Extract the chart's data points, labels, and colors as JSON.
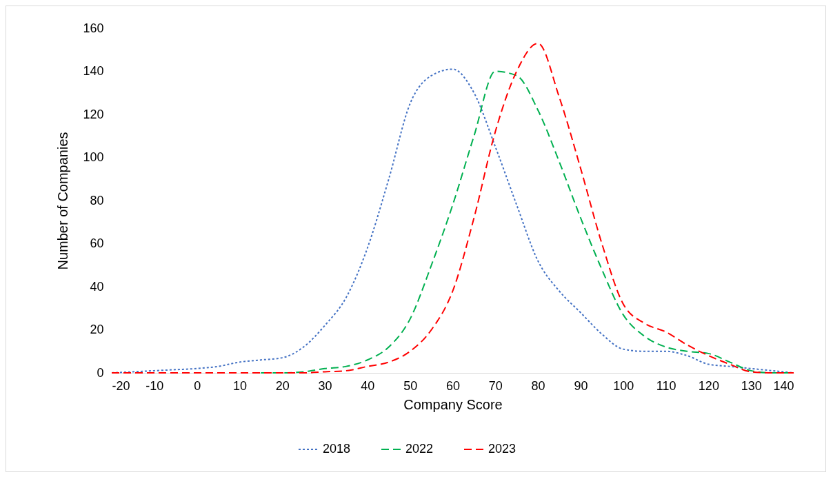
{
  "chart_data": {
    "type": "line",
    "xlabel": "Company Score",
    "ylabel": "Number of Companies",
    "xlim": [
      -20,
      140
    ],
    "xticks": [
      -20,
      -10,
      0,
      10,
      20,
      30,
      40,
      50,
      60,
      70,
      80,
      90,
      100,
      110,
      120,
      130,
      140
    ],
    "ylim": [
      0,
      160
    ],
    "yticks": [
      0,
      20,
      40,
      60,
      80,
      100,
      120,
      140,
      160
    ],
    "grid": false,
    "legend": "bottom",
    "marker": "none",
    "x": [
      -20,
      -15,
      -10,
      -5,
      0,
      5,
      10,
      15,
      20,
      25,
      30,
      35,
      40,
      45,
      50,
      55,
      60,
      65,
      70,
      75,
      80,
      85,
      90,
      95,
      100,
      105,
      110,
      115,
      120,
      125,
      130,
      135,
      140
    ],
    "series": [
      {
        "name": "2018",
        "color": "#4472c4",
        "line_style": "dotted",
        "values": [
          0,
          0.5,
          1,
          1.5,
          2,
          3,
          5,
          6,
          7,
          12,
          22,
          35,
          58,
          90,
          125,
          138,
          141,
          130,
          105,
          78,
          52,
          38,
          28,
          18,
          11,
          10,
          10,
          8,
          4,
          3,
          2,
          1,
          0
        ]
      },
      {
        "name": "2022",
        "color": "#00b050",
        "line_style": "dashed",
        "values": [
          null,
          null,
          null,
          null,
          null,
          null,
          null,
          0,
          0,
          0.5,
          2,
          3,
          6,
          12,
          25,
          50,
          78,
          110,
          140,
          138,
          122,
          98,
          72,
          48,
          27,
          17,
          12,
          10,
          9,
          5,
          1,
          0,
          0
        ]
      },
      {
        "name": "2023",
        "color": "#ff0000",
        "line_style": "dashed",
        "values": [
          0,
          0,
          0,
          0,
          0,
          0,
          0,
          0,
          0,
          0,
          0.5,
          1,
          3,
          5,
          10,
          20,
          38,
          72,
          112,
          140,
          153,
          128,
          95,
          60,
          32,
          23,
          19,
          13,
          8,
          4,
          0.5,
          0,
          0
        ]
      }
    ]
  }
}
